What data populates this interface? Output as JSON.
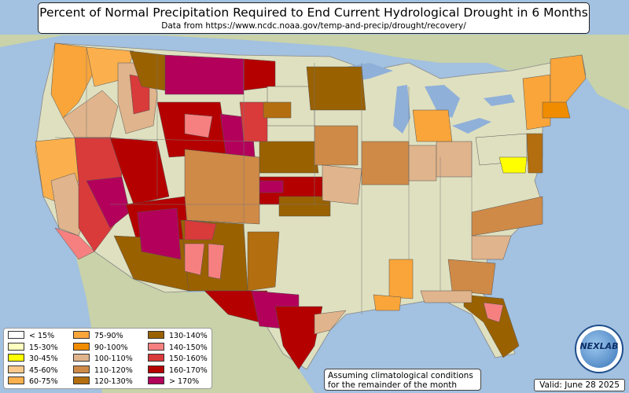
{
  "title": "Percent of Normal Precipitation Required to End Current Hydrological Drought in 6 Months",
  "subtitle": "Data from https://www.ncdc.noaa.gov/temp-and-precip/drought/recovery/",
  "legend": [
    {
      "label": "< 15%",
      "color": "#ffffff"
    },
    {
      "label": "15-30%",
      "color": "#ffffc0"
    },
    {
      "label": "30-45%",
      "color": "#ffff00"
    },
    {
      "label": "45-60%",
      "color": "#f9c98c"
    },
    {
      "label": "60-75%",
      "color": "#fbb04d"
    },
    {
      "label": "75-90%",
      "color": "#f9a53a"
    },
    {
      "label": "90-100%",
      "color": "#f08c00"
    },
    {
      "label": "100-110%",
      "color": "#e0b48c"
    },
    {
      "label": "110-120%",
      "color": "#cf8a47"
    },
    {
      "label": "120-130%",
      "color": "#b36e10"
    },
    {
      "label": "130-140%",
      "color": "#9a6100"
    },
    {
      "label": "140-150%",
      "color": "#f68080"
    },
    {
      "label": "150-160%",
      "color": "#d93a3a"
    },
    {
      "label": "160-170%",
      "color": "#b50000"
    },
    {
      "label": "> 170%",
      "color": "#b3005a"
    }
  ],
  "note": "Assuming climatological conditions for the remainder of the month",
  "valid": "Valid: June 28 2025",
  "logo_text": "NEXLAB",
  "colors": {
    "ocean": "#a3c1e0",
    "land": "#dfe0c0",
    "water_lakes": "#8fb0d8",
    "land_outside": "#c9d2a8"
  }
}
